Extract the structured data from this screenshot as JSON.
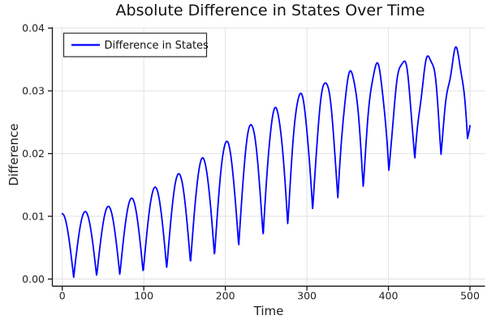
{
  "title": "Absolute Difference in States Over Time",
  "chart_data": {
    "type": "line",
    "title": "Absolute Difference in States Over Time",
    "xlabel": "Time",
    "ylabel": "Difference",
    "xlim": [
      -13,
      519
    ],
    "ylim": [
      -0.0011,
      0.0412
    ],
    "grid": true,
    "x_ticks": [
      {
        "v": 0,
        "label": "0"
      },
      {
        "v": 100,
        "label": "100"
      },
      {
        "v": 200,
        "label": "200"
      },
      {
        "v": 300,
        "label": "300"
      },
      {
        "v": 400,
        "label": "400"
      },
      {
        "v": 500,
        "label": "500"
      }
    ],
    "y_ticks": [
      {
        "v": 0.0,
        "label": "0.00"
      },
      {
        "v": 0.01,
        "label": "0.01"
      },
      {
        "v": 0.02,
        "label": "0.02"
      },
      {
        "v": 0.03,
        "label": "0.03"
      },
      {
        "v": 0.04,
        "label": "0.04"
      }
    ],
    "legend": {
      "position": "top-left"
    },
    "series": [
      {
        "name": "Difference in States",
        "color": "#0000ff",
        "x_range": [
          0,
          500
        ],
        "sample_step": 0.5,
        "generator": {
          "comment": "d(t)=max(0, floor + amp*|cos(theta)| + notch1 + notch2); theta=omega0*t-chirp*t^2; floor=fs*ln(1+exp((t-fc)/fw)); amp=a0+a1*sin^2(pi*t/ap); notch_i=r_i*(t/500)^p_i*(cos(...)-1)/2",
          "omega0": 0.11243,
          "chirp": 1.6364e-05,
          "floor_scale": 0.004015,
          "floor_center": 160,
          "floor_width": 55,
          "amp_base": 0.0102,
          "amp_gain": 0.0112,
          "amp_period": 640,
          "r1": 0.0042,
          "p1": 2,
          "psi1": 0.9,
          "drift1": 140,
          "harm1": 2,
          "r2": 0.0018,
          "p2": 3,
          "drift2": 37,
          "harm2": 5.1
        },
        "key_points": {
          "start": [
            0,
            0.01
          ],
          "end": [
            500,
            0.0245
          ],
          "peaks": [
            [
              28,
              0.0105
            ],
            [
              57,
              0.0118
            ],
            [
              86,
              0.0137
            ],
            [
              114,
              0.0161
            ],
            [
              145,
              0.0184
            ],
            [
              173,
              0.021
            ],
            [
              202,
              0.0234
            ],
            [
              234,
              0.0254
            ],
            [
              261,
              0.0279
            ],
            [
              290,
              0.0301
            ],
            [
              320,
              0.0317
            ],
            [
              357,
              0.0336
            ],
            [
              388,
              0.0349
            ],
            [
              420,
              0.036
            ],
            [
              450,
              0.0372
            ],
            [
              480,
              0.039
            ]
          ],
          "troughs": [
            [
              14,
              0.0
            ],
            [
              43,
              0.0
            ],
            [
              72,
              0.0005
            ],
            [
              100,
              0.0007
            ],
            [
              128,
              0.0015
            ],
            [
              160,
              0.003
            ],
            [
              191,
              0.0037
            ],
            [
              221,
              0.0057
            ],
            [
              252,
              0.0074
            ],
            [
              283,
              0.0095
            ],
            [
              313,
              0.012
            ],
            [
              343,
              0.013
            ],
            [
              377,
              0.0165
            ],
            [
              407,
              0.0186
            ],
            [
              436,
              0.0196
            ],
            [
              466,
              0.0215
            ],
            [
              493,
              0.0238
            ]
          ]
        }
      }
    ],
    "colors": {
      "line": "#0000ff",
      "grid": "#e2e2e2",
      "spine": "#151515",
      "tick_label": "#1f1f1f",
      "background": "#ffffff",
      "legend_border": "#2a2a2a"
    }
  },
  "legend_entry": "Difference in States"
}
